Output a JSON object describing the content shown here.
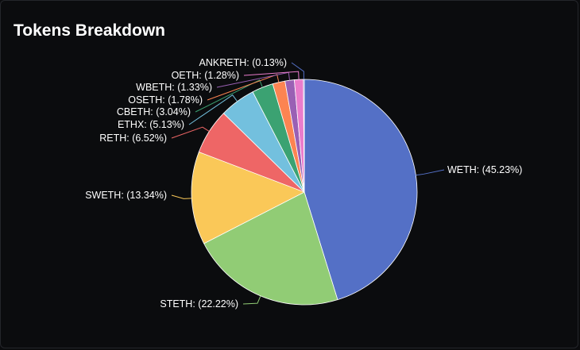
{
  "card": {
    "title": "Tokens Breakdown"
  },
  "chart_data": {
    "type": "pie",
    "title": "Tokens Breakdown",
    "slices": [
      {
        "name": "WETH",
        "label": "WETH: (45.23%)",
        "value": 45.23,
        "color": "#5470c6"
      },
      {
        "name": "STETH",
        "label": "STETH: (22.22%)",
        "value": 22.22,
        "color": "#91cc75"
      },
      {
        "name": "SWETH",
        "label": "SWETH: (13.34%)",
        "value": 13.34,
        "color": "#fac858"
      },
      {
        "name": "RETH",
        "label": "RETH: (6.52%)",
        "value": 6.52,
        "color": "#ee6666"
      },
      {
        "name": "ETHX",
        "label": "ETHX: (5.13%)",
        "value": 5.13,
        "color": "#73c0de"
      },
      {
        "name": "CBETH",
        "label": "CBETH: (3.04%)",
        "value": 3.04,
        "color": "#3ba272"
      },
      {
        "name": "OSETH",
        "label": "OSETH: (1.78%)",
        "value": 1.78,
        "color": "#fc8452"
      },
      {
        "name": "WBETH",
        "label": "WBETH: (1.33%)",
        "value": 1.33,
        "color": "#9a60b4"
      },
      {
        "name": "OETH",
        "label": "OETH: (1.28%)",
        "value": 1.28,
        "color": "#ea7ccc"
      },
      {
        "name": "ANKRETH",
        "label": "ANKRETH: (0.13%)",
        "value": 0.13,
        "color": "#5470c6"
      }
    ]
  }
}
